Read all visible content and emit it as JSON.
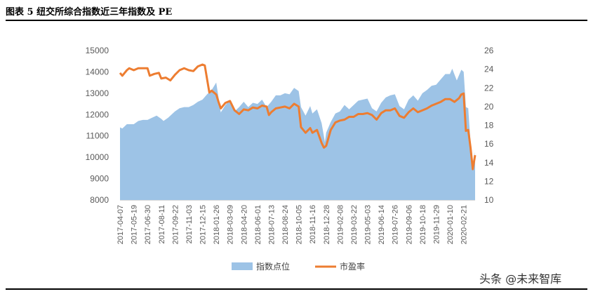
{
  "title": "图表 5 纽交所综合指数近三年指数及 PE",
  "watermark": "头条 @未来智库",
  "colors": {
    "index_fill": "#9dc3e6",
    "pe_line": "#ed7d31",
    "axis_text": "#595959",
    "rule": "#000000"
  },
  "chart_data": {
    "type": "area",
    "x_ticks": [
      "2017-04-07",
      "2017-05-19",
      "2017-06-30",
      "2017-08-11",
      "2017-09-22",
      "2017-11-03",
      "2017-12-15",
      "2018-01-26",
      "2018-03-09",
      "2018-04-20",
      "2018-06-01",
      "2018-07-13",
      "2018-08-24",
      "2018-10-05",
      "2018-11-16",
      "2018-12-28",
      "2019-02-08",
      "2019-03-22",
      "2019-05-03",
      "2019-06-14",
      "2019-07-26",
      "2019-09-06",
      "2019-10-18",
      "2019-11-29",
      "2020-01-10",
      "2020-02-21"
    ],
    "y_left": {
      "ticks": [
        "8000",
        "9000",
        "10000",
        "11000",
        "12000",
        "13000",
        "14000",
        "15000"
      ],
      "min": 8000,
      "max": 15000
    },
    "y_right": {
      "ticks": [
        "10",
        "12",
        "14",
        "16",
        "18",
        "20",
        "22",
        "24",
        "26"
      ],
      "min": 10,
      "max": 26
    },
    "legend_position": "bottom",
    "series": [
      {
        "name": "指数点位",
        "kind": "area",
        "axis": "left",
        "points": [
          [
            "2017-04-07",
            11400
          ],
          [
            "2017-04-14",
            11350
          ],
          [
            "2017-04-28",
            11550
          ],
          [
            "2017-05-19",
            11550
          ],
          [
            "2017-06-02",
            11700
          ],
          [
            "2017-06-16",
            11750
          ],
          [
            "2017-06-30",
            11750
          ],
          [
            "2017-07-14",
            11850
          ],
          [
            "2017-07-28",
            11950
          ],
          [
            "2017-08-11",
            11800
          ],
          [
            "2017-08-18",
            11700
          ],
          [
            "2017-09-01",
            11850
          ],
          [
            "2017-09-22",
            12150
          ],
          [
            "2017-10-06",
            12300
          ],
          [
            "2017-10-20",
            12350
          ],
          [
            "2017-11-03",
            12350
          ],
          [
            "2017-11-17",
            12450
          ],
          [
            "2017-12-01",
            12600
          ],
          [
            "2017-12-15",
            12700
          ],
          [
            "2017-12-29",
            12950
          ],
          [
            "2018-01-12",
            13150
          ],
          [
            "2018-01-26",
            13500
          ],
          [
            "2018-02-02",
            12800
          ],
          [
            "2018-02-09",
            12100
          ],
          [
            "2018-02-23",
            12450
          ],
          [
            "2018-03-09",
            12650
          ],
          [
            "2018-03-23",
            12150
          ],
          [
            "2018-04-06",
            12350
          ],
          [
            "2018-04-20",
            12600
          ],
          [
            "2018-05-04",
            12350
          ],
          [
            "2018-05-18",
            12550
          ],
          [
            "2018-06-01",
            12500
          ],
          [
            "2018-06-15",
            12700
          ],
          [
            "2018-06-29",
            12350
          ],
          [
            "2018-07-13",
            12600
          ],
          [
            "2018-07-27",
            12900
          ],
          [
            "2018-08-10",
            12900
          ],
          [
            "2018-08-24",
            13000
          ],
          [
            "2018-09-07",
            12950
          ],
          [
            "2018-09-21",
            13250
          ],
          [
            "2018-10-05",
            13100
          ],
          [
            "2018-10-12",
            12350
          ],
          [
            "2018-10-26",
            11950
          ],
          [
            "2018-11-09",
            12400
          ],
          [
            "2018-11-16",
            12050
          ],
          [
            "2018-11-30",
            12250
          ],
          [
            "2018-12-14",
            11600
          ],
          [
            "2018-12-21",
            11000
          ],
          [
            "2018-12-24",
            10700
          ],
          [
            "2018-12-28",
            11150
          ],
          [
            "2019-01-11",
            11650
          ],
          [
            "2019-01-25",
            12050
          ],
          [
            "2019-02-08",
            12150
          ],
          [
            "2019-02-22",
            12450
          ],
          [
            "2019-03-08",
            12250
          ],
          [
            "2019-03-22",
            12450
          ],
          [
            "2019-04-05",
            12650
          ],
          [
            "2019-04-19",
            12700
          ],
          [
            "2019-05-03",
            12750
          ],
          [
            "2019-05-17",
            12300
          ],
          [
            "2019-05-31",
            12150
          ],
          [
            "2019-06-14",
            12550
          ],
          [
            "2019-06-28",
            12800
          ],
          [
            "2019-07-12",
            12900
          ],
          [
            "2019-07-26",
            12950
          ],
          [
            "2019-08-09",
            12400
          ],
          [
            "2019-08-23",
            12250
          ],
          [
            "2019-09-06",
            12700
          ],
          [
            "2019-09-20",
            12900
          ],
          [
            "2019-10-04",
            12650
          ],
          [
            "2019-10-18",
            13000
          ],
          [
            "2019-11-01",
            13150
          ],
          [
            "2019-11-15",
            13350
          ],
          [
            "2019-11-29",
            13400
          ],
          [
            "2019-12-13",
            13650
          ],
          [
            "2019-12-27",
            13900
          ],
          [
            "2020-01-10",
            13900
          ],
          [
            "2020-01-17",
            14150
          ],
          [
            "2020-01-31",
            13600
          ],
          [
            "2020-02-14",
            14100
          ],
          [
            "2020-02-21",
            14000
          ],
          [
            "2020-02-28",
            12350
          ],
          [
            "2020-03-06",
            12300
          ],
          [
            "2020-03-13",
            10700
          ],
          [
            "2020-03-20",
            9400
          ],
          [
            "2020-03-27",
            10250
          ]
        ]
      },
      {
        "name": "市盈率",
        "kind": "line",
        "axis": "right",
        "points": [
          [
            "2017-04-07",
            23.6
          ],
          [
            "2017-04-14",
            23.3
          ],
          [
            "2017-04-28",
            23.9
          ],
          [
            "2017-05-05",
            24.1
          ],
          [
            "2017-05-19",
            23.9
          ],
          [
            "2017-06-02",
            24.1
          ],
          [
            "2017-06-16",
            24.1
          ],
          [
            "2017-06-30",
            24.1
          ],
          [
            "2017-07-07",
            23.3
          ],
          [
            "2017-07-21",
            23.5
          ],
          [
            "2017-08-04",
            23.6
          ],
          [
            "2017-08-11",
            23.0
          ],
          [
            "2017-08-25",
            23.1
          ],
          [
            "2017-09-08",
            22.8
          ],
          [
            "2017-09-22",
            23.4
          ],
          [
            "2017-10-06",
            23.9
          ],
          [
            "2017-10-20",
            24.1
          ],
          [
            "2017-11-03",
            23.9
          ],
          [
            "2017-11-17",
            23.8
          ],
          [
            "2017-12-01",
            24.3
          ],
          [
            "2017-12-15",
            24.5
          ],
          [
            "2017-12-22",
            24.4
          ],
          [
            "2018-01-05",
            21.5
          ],
          [
            "2018-01-12",
            21.7
          ],
          [
            "2018-01-26",
            21.3
          ],
          [
            "2018-02-02",
            20.5
          ],
          [
            "2018-02-09",
            19.8
          ],
          [
            "2018-02-23",
            20.4
          ],
          [
            "2018-03-09",
            20.6
          ],
          [
            "2018-03-23",
            19.6
          ],
          [
            "2018-04-06",
            19.2
          ],
          [
            "2018-04-20",
            19.7
          ],
          [
            "2018-05-04",
            19.6
          ],
          [
            "2018-05-18",
            19.9
          ],
          [
            "2018-06-01",
            19.8
          ],
          [
            "2018-06-15",
            20.1
          ],
          [
            "2018-06-29",
            20.0
          ],
          [
            "2018-07-06",
            19.1
          ],
          [
            "2018-07-13",
            19.4
          ],
          [
            "2018-07-27",
            19.8
          ],
          [
            "2018-08-10",
            19.9
          ],
          [
            "2018-08-24",
            20.0
          ],
          [
            "2018-09-07",
            19.8
          ],
          [
            "2018-09-21",
            20.3
          ],
          [
            "2018-10-05",
            20.0
          ],
          [
            "2018-10-12",
            17.8
          ],
          [
            "2018-10-26",
            17.2
          ],
          [
            "2018-11-09",
            17.7
          ],
          [
            "2018-11-16",
            17.2
          ],
          [
            "2018-11-30",
            17.5
          ],
          [
            "2018-12-14",
            16.1
          ],
          [
            "2018-12-21",
            15.6
          ],
          [
            "2018-12-28",
            15.8
          ],
          [
            "2019-01-11",
            17.5
          ],
          [
            "2019-01-25",
            18.3
          ],
          [
            "2019-02-08",
            18.5
          ],
          [
            "2019-02-22",
            18.6
          ],
          [
            "2019-03-08",
            18.9
          ],
          [
            "2019-03-22",
            18.9
          ],
          [
            "2019-04-05",
            19.2
          ],
          [
            "2019-04-19",
            19.2
          ],
          [
            "2019-05-03",
            19.3
          ],
          [
            "2019-05-17",
            19.1
          ],
          [
            "2019-05-31",
            18.6
          ],
          [
            "2019-06-14",
            19.3
          ],
          [
            "2019-06-28",
            19.6
          ],
          [
            "2019-07-12",
            19.6
          ],
          [
            "2019-07-26",
            19.8
          ],
          [
            "2019-08-09",
            19.0
          ],
          [
            "2019-08-23",
            18.8
          ],
          [
            "2019-09-06",
            19.4
          ],
          [
            "2019-09-20",
            19.8
          ],
          [
            "2019-10-04",
            19.4
          ],
          [
            "2019-10-18",
            19.6
          ],
          [
            "2019-11-01",
            19.8
          ],
          [
            "2019-11-15",
            20.1
          ],
          [
            "2019-11-29",
            20.3
          ],
          [
            "2019-12-13",
            20.5
          ],
          [
            "2019-12-27",
            20.8
          ],
          [
            "2020-01-10",
            20.8
          ],
          [
            "2020-01-24",
            20.5
          ],
          [
            "2020-02-07",
            20.9
          ],
          [
            "2020-02-14",
            21.3
          ],
          [
            "2020-02-21",
            21.4
          ],
          [
            "2020-02-28",
            17.4
          ],
          [
            "2020-03-06",
            17.5
          ],
          [
            "2020-03-13",
            15.6
          ],
          [
            "2020-03-20",
            13.3
          ],
          [
            "2020-03-27",
            14.8
          ]
        ]
      }
    ]
  }
}
